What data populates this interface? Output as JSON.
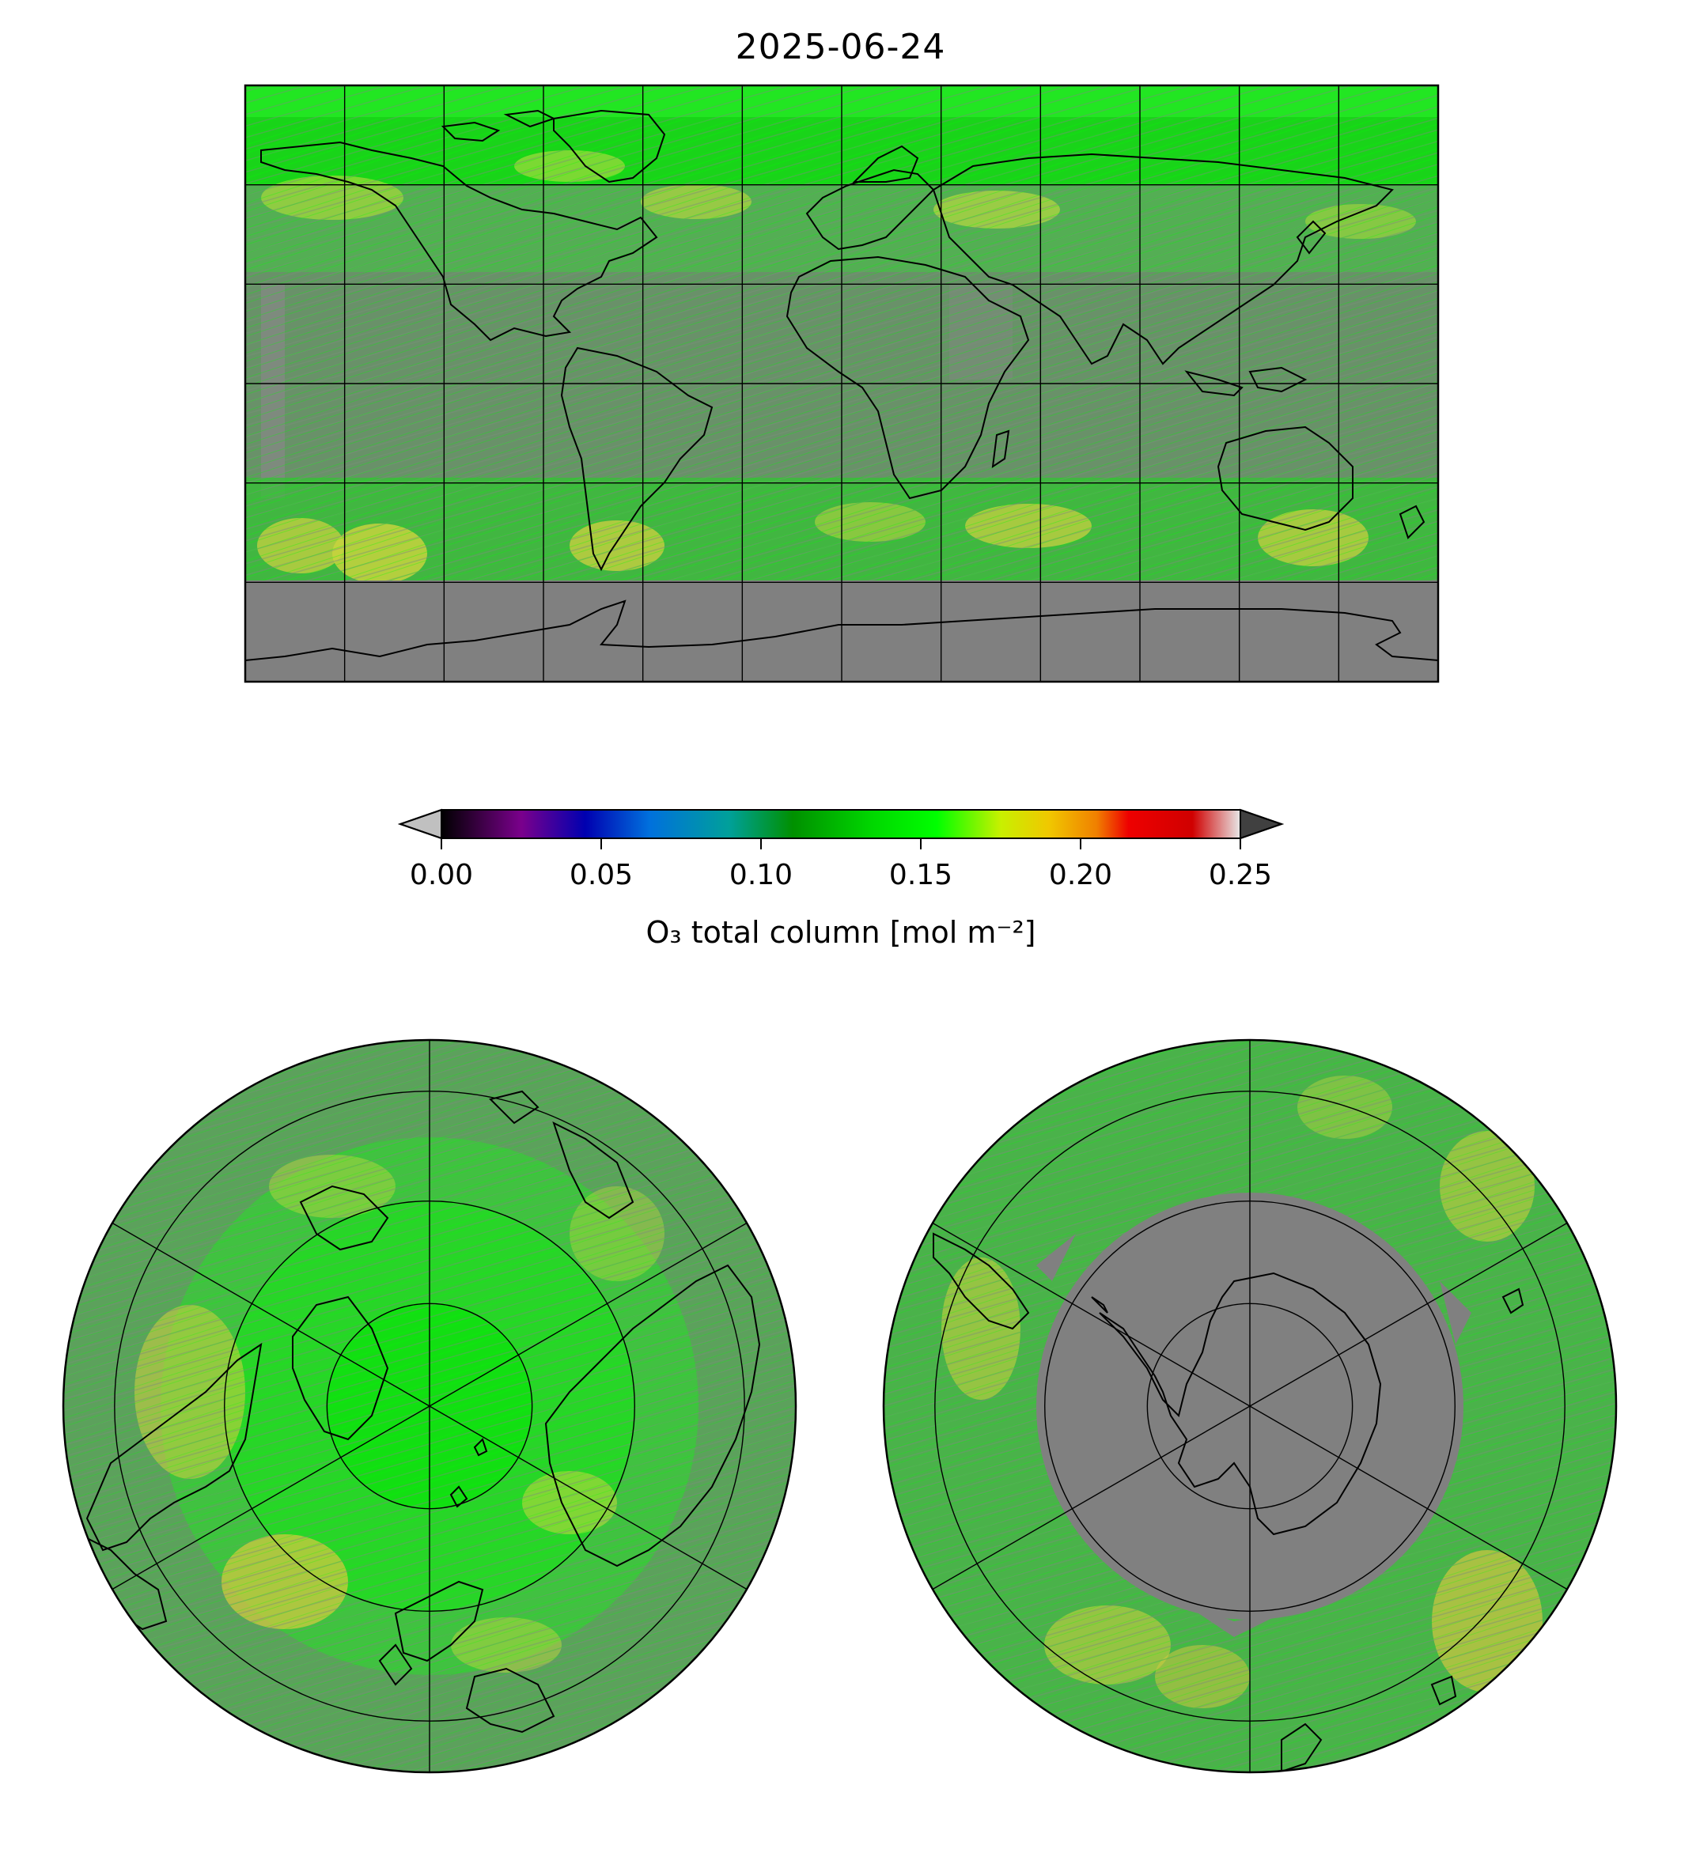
{
  "figure": {
    "title": "2025-06-24"
  },
  "maps": [
    {
      "name": "global-map",
      "projection": "plate-carree",
      "lon_range": [
        -180,
        180
      ],
      "lat_range": [
        -90,
        90
      ],
      "gridline_spacing_deg": 30
    },
    {
      "name": "north-polar-map",
      "projection": "north-polar-stereographic",
      "min_lat": 0,
      "gridline_spacing_deg": 30
    },
    {
      "name": "south-polar-map",
      "projection": "south-polar-stereographic",
      "max_lat": 0,
      "gridline_spacing_deg": 30
    }
  ],
  "colorbar": {
    "label": "O₃ total column [mol m⁻²]",
    "range": [
      0.0,
      0.25
    ],
    "extend": "both",
    "under_color": "#c0c0c0",
    "over_color": "#404040",
    "ticks": [
      "0.00",
      "0.05",
      "0.10",
      "0.15",
      "0.20",
      "0.25"
    ],
    "colormap_stops": [
      {
        "value": 0.0,
        "color": "#000000"
      },
      {
        "value": 0.025,
        "color": "#7a008c"
      },
      {
        "value": 0.045,
        "color": "#0000b0"
      },
      {
        "value": 0.065,
        "color": "#0070dd"
      },
      {
        "value": 0.09,
        "color": "#00a09a"
      },
      {
        "value": 0.11,
        "color": "#009000"
      },
      {
        "value": 0.135,
        "color": "#00d800"
      },
      {
        "value": 0.155,
        "color": "#00ff00"
      },
      {
        "value": 0.175,
        "color": "#c8f000"
      },
      {
        "value": 0.19,
        "color": "#f0c800"
      },
      {
        "value": 0.205,
        "color": "#f08000"
      },
      {
        "value": 0.215,
        "color": "#ee0000"
      },
      {
        "value": 0.235,
        "color": "#d00000"
      },
      {
        "value": 0.25,
        "color": "#e8e8e8"
      }
    ]
  },
  "colors": {
    "no_data": "#808080",
    "field_low": "#4f9a4f",
    "field_mid": "#2fd12f",
    "field_high": "#d8e020",
    "coastline": "#000000"
  }
}
